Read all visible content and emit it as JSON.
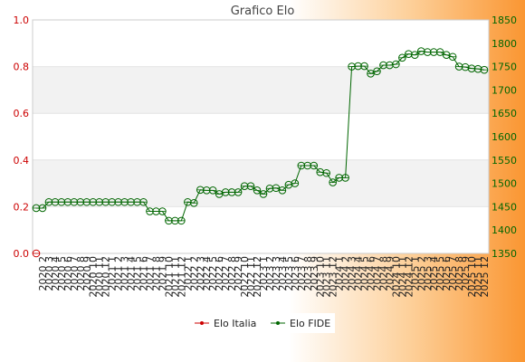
{
  "chart_data": {
    "type": "line",
    "title": "Grafico Elo",
    "xlabel": "",
    "ylabel_left": "",
    "ylabel_right": "",
    "left_axis": {
      "ylim": [
        0,
        1.0
      ],
      "ticks": [
        0.0,
        0.2,
        0.4,
        0.6,
        0.8,
        1.0
      ],
      "color": "#cc0000"
    },
    "right_axis": {
      "ylim": [
        1350,
        1850
      ],
      "ticks": [
        1350,
        1400,
        1450,
        1500,
        1550,
        1600,
        1650,
        1700,
        1750,
        1800,
        1850
      ],
      "color": "#006600"
    },
    "grid": "horizontal bands",
    "legend_placement": "bottom-center",
    "categories": [
      "2020 1",
      "2020 2",
      "2020 3",
      "2020 4",
      "2020 5",
      "2020 6",
      "2020 7",
      "2020 8",
      "2020 9",
      "2020 10",
      "2020 11",
      "2020 12",
      "2021 1",
      "2021 2",
      "2021 3",
      "2021 4",
      "2021 5",
      "2021 6",
      "2021 7",
      "2021 8",
      "2021 9",
      "2021 10",
      "2021 11",
      "2021 12",
      "2022 1",
      "2022 2",
      "2022 3",
      "2022 4",
      "2022 5",
      "2022 6",
      "2022 7",
      "2022 8",
      "2022 9",
      "2022 10",
      "2022 11",
      "2022 12",
      "2023 1",
      "2023 2",
      "2023 3",
      "2023 4",
      "2023 5",
      "2023 6",
      "2023 7",
      "2023 8",
      "2023 9",
      "2023 10",
      "2023 11",
      "2023 12",
      "2024 1",
      "2024 2",
      "2024 3",
      "2024 4",
      "2024 5",
      "2024 6",
      "2024 7",
      "2024 8",
      "2024 9",
      "2024 10",
      "2024 11",
      "2024 12",
      "2025 1",
      "2025 2",
      "2025 3",
      "2025 4",
      "2025 5",
      "2025 6",
      "2025 7",
      "2025 8",
      "2025 9",
      "2025 10",
      "2025 11",
      "2025 12"
    ],
    "series": [
      {
        "name": "Elo Italia",
        "axis": "left",
        "color": "#cc0000",
        "values": [
          0,
          null,
          null,
          null,
          null,
          null,
          null,
          null,
          null,
          null,
          null,
          null,
          null,
          null,
          null,
          null,
          null,
          null,
          null,
          null,
          null,
          null,
          null,
          null,
          null,
          null,
          null,
          null,
          null,
          null,
          null,
          null,
          null,
          null,
          null,
          null,
          null,
          null,
          null,
          null,
          null,
          null,
          null,
          null,
          null,
          null,
          null,
          null,
          null,
          null,
          null,
          null,
          null,
          null,
          null,
          null,
          null,
          null,
          null,
          null,
          null,
          null,
          null,
          null,
          null,
          null,
          null,
          null,
          null,
          null,
          null,
          null
        ]
      },
      {
        "name": "Elo FIDE",
        "axis": "right",
        "color": "#006600",
        "values": [
          1447,
          1447,
          1460,
          1460,
          1460,
          1460,
          1460,
          1460,
          1460,
          1460,
          1460,
          1460,
          1460,
          1460,
          1460,
          1460,
          1460,
          1460,
          1440,
          1440,
          1440,
          1420,
          1420,
          1420,
          1460,
          1458,
          1486,
          1485,
          1485,
          1477,
          1481,
          1481,
          1481,
          1494,
          1494,
          1485,
          1477,
          1489,
          1490,
          1485,
          1497,
          1500,
          1538,
          1538,
          1538,
          1524,
          1522,
          1502,
          1512,
          1512,
          1750,
          1751,
          1751,
          1735,
          1740,
          1753,
          1753,
          1755,
          1769,
          1777,
          1775,
          1783,
          1781,
          1781,
          1781,
          1775,
          1771,
          1750,
          1749,
          1746,
          1745,
          1743
        ]
      }
    ]
  }
}
